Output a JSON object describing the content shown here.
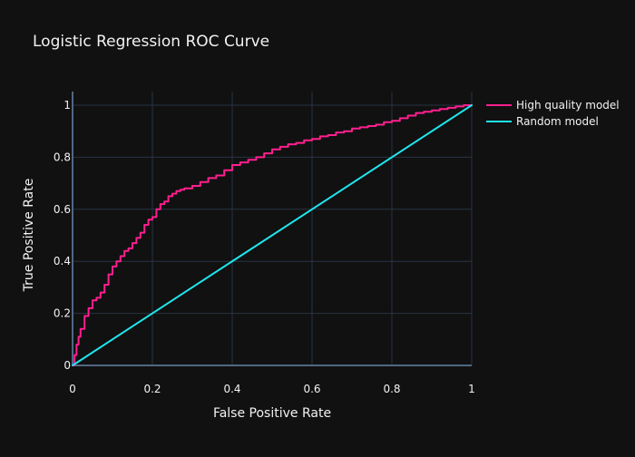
{
  "chart_data": {
    "type": "line",
    "title": "Logistic Regression ROC Curve",
    "xlabel": "False Positive Rate",
    "ylabel": "True Positive Rate",
    "xlim": [
      0,
      1
    ],
    "ylim": [
      0,
      1
    ],
    "x_ticks": [
      0,
      0.2,
      0.4,
      0.6,
      0.8,
      1
    ],
    "y_ticks": [
      0,
      0.2,
      0.4,
      0.6,
      0.8,
      1
    ],
    "x_tick_labels": [
      "0",
      "0.2",
      "0.4",
      "0.6",
      "0.8",
      "1"
    ],
    "y_tick_labels": [
      "0",
      "0.2",
      "0.4",
      "0.6",
      "0.8",
      "1"
    ],
    "grid": true,
    "legend_position": "top-right",
    "series": [
      {
        "name": "High quality model",
        "color": "#ff1f8f",
        "x": [
          0,
          0.005,
          0.01,
          0.015,
          0.02,
          0.03,
          0.04,
          0.05,
          0.06,
          0.07,
          0.08,
          0.09,
          0.1,
          0.11,
          0.12,
          0.13,
          0.14,
          0.15,
          0.16,
          0.17,
          0.18,
          0.19,
          0.2,
          0.21,
          0.22,
          0.23,
          0.24,
          0.25,
          0.26,
          0.27,
          0.28,
          0.3,
          0.32,
          0.34,
          0.36,
          0.38,
          0.4,
          0.42,
          0.44,
          0.46,
          0.48,
          0.5,
          0.52,
          0.54,
          0.56,
          0.58,
          0.6,
          0.62,
          0.64,
          0.66,
          0.68,
          0.7,
          0.72,
          0.74,
          0.76,
          0.78,
          0.8,
          0.82,
          0.84,
          0.86,
          0.88,
          0.9,
          0.92,
          0.94,
          0.96,
          0.98,
          1
        ],
        "values": [
          0,
          0.04,
          0.08,
          0.11,
          0.14,
          0.19,
          0.22,
          0.25,
          0.26,
          0.28,
          0.31,
          0.35,
          0.38,
          0.4,
          0.42,
          0.44,
          0.45,
          0.47,
          0.49,
          0.51,
          0.54,
          0.56,
          0.57,
          0.6,
          0.62,
          0.63,
          0.65,
          0.66,
          0.67,
          0.675,
          0.68,
          0.69,
          0.705,
          0.72,
          0.73,
          0.75,
          0.77,
          0.78,
          0.79,
          0.8,
          0.815,
          0.83,
          0.84,
          0.85,
          0.855,
          0.865,
          0.87,
          0.88,
          0.885,
          0.895,
          0.9,
          0.91,
          0.915,
          0.92,
          0.925,
          0.935,
          0.94,
          0.95,
          0.96,
          0.97,
          0.975,
          0.98,
          0.985,
          0.99,
          0.995,
          1,
          1
        ]
      },
      {
        "name": "Random model",
        "color": "#1fe6ee",
        "x": [
          0,
          1
        ],
        "values": [
          0,
          1
        ]
      }
    ]
  }
}
